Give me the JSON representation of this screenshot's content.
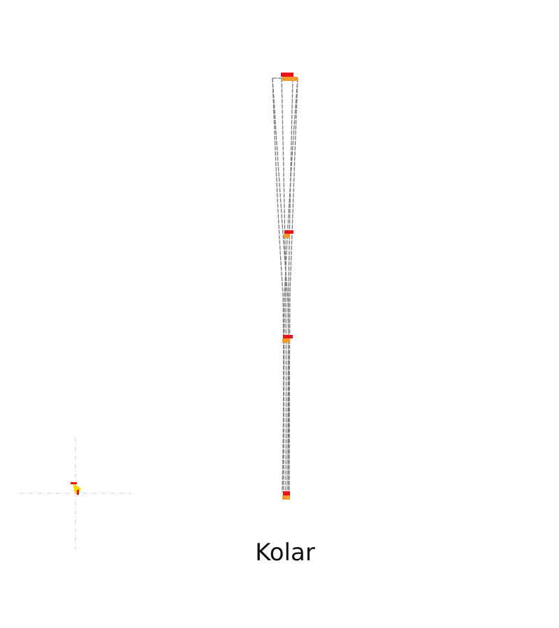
{
  "title": "Kolar",
  "colors": {
    "background": "#ffffff",
    "outline": "#777777",
    "marker_primary": "#e8141a",
    "marker_secondary": "#f39a2a",
    "guide": "#cfcfcf",
    "origin_marker": "#ffd400"
  }
}
